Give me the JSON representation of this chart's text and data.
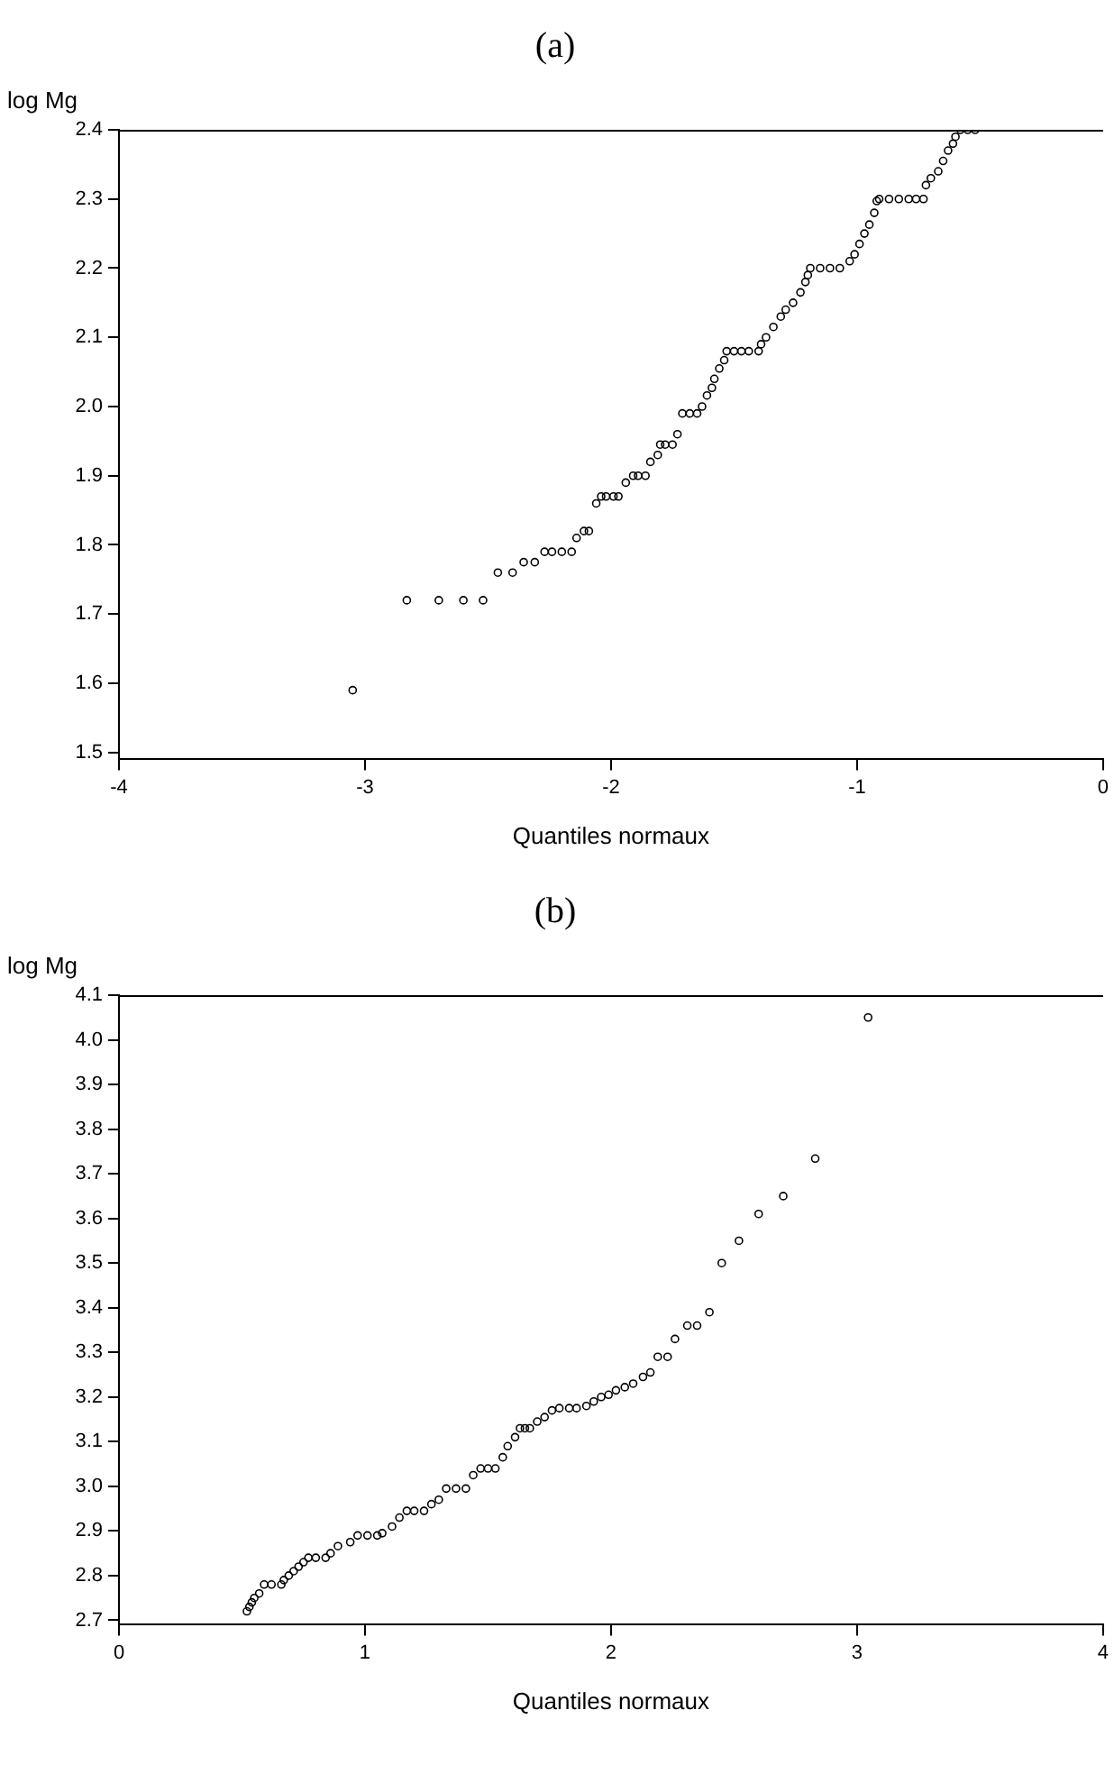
{
  "chart_data": [
    {
      "type": "scatter",
      "title": "(a)",
      "xlabel": "Quantiles normaux",
      "ylabel": "log Mg",
      "marker": "circle",
      "xlim": [
        -4,
        0
      ],
      "ylim": [
        1.49,
        2.4
      ],
      "xticks": [
        -4,
        -3,
        -2,
        -1,
        0
      ],
      "yticks": [
        1.5,
        1.6,
        1.7,
        1.8,
        1.9,
        {
          "value": 2,
          "label": "2.0"
        },
        2.1,
        2.2,
        2.3,
        2.4
      ],
      "series": [
        {
          "color": "#000000",
          "x": [
            -3.05,
            -2.83,
            -2.7,
            -2.6,
            -2.52,
            -2.46,
            -2.4,
            -2.355,
            -2.31,
            -2.27,
            -2.24,
            -2.2,
            -2.16,
            -2.14,
            -2.11,
            -2.09,
            -2.06,
            -2.04,
            -2.02,
            -1.99,
            -1.97,
            -1.94,
            -1.91,
            -1.89,
            -1.86,
            -1.84,
            -1.81,
            -1.8,
            -1.78,
            -1.75,
            -1.73,
            -1.71,
            -1.68,
            -1.65,
            -1.63,
            -1.61,
            -1.59,
            -1.58,
            -1.56,
            -1.54,
            -1.53,
            -1.5,
            -1.47,
            -1.44,
            -1.4,
            -1.39,
            -1.37,
            -1.34,
            -1.31,
            -1.29,
            -1.26,
            -1.23,
            -1.21,
            -1.2,
            -1.19,
            -1.15,
            -1.11,
            -1.07,
            -1.03,
            -1.01,
            -0.99,
            -0.97,
            -0.95,
            -0.93,
            -0.92,
            -0.91,
            -0.87,
            -0.83,
            -0.79,
            -0.76,
            -0.73,
            -0.72,
            -0.7,
            -0.67,
            -0.65,
            -0.63,
            -0.61,
            -0.6,
            -0.58,
            -0.55,
            -0.52
          ],
          "values": [
            1.59,
            1.72,
            1.72,
            1.72,
            1.72,
            1.76,
            1.76,
            1.775,
            1.775,
            1.79,
            1.79,
            1.79,
            1.79,
            1.81,
            1.82,
            1.82,
            1.86,
            1.87,
            1.87,
            1.87,
            1.87,
            1.89,
            1.9,
            1.9,
            1.9,
            1.92,
            1.93,
            1.945,
            1.945,
            1.945,
            1.96,
            1.99,
            1.99,
            1.99,
            2.0,
            2.016,
            2.027,
            2.04,
            2.055,
            2.067,
            2.08,
            2.08,
            2.08,
            2.08,
            2.08,
            2.09,
            2.1,
            2.115,
            2.13,
            2.14,
            2.15,
            2.165,
            2.18,
            2.19,
            2.2,
            2.2,
            2.2,
            2.2,
            2.21,
            2.22,
            2.235,
            2.25,
            2.263,
            2.28,
            2.297,
            2.3,
            2.3,
            2.3,
            2.3,
            2.3,
            2.3,
            2.32,
            2.33,
            2.34,
            2.355,
            2.37,
            2.38,
            2.39,
            2.4,
            2.4,
            2.4
          ]
        }
      ]
    },
    {
      "type": "scatter",
      "title": "(b)",
      "xlabel": "Quantiles normaux",
      "ylabel": "log Mg",
      "marker": "circle",
      "xlim": [
        0,
        4
      ],
      "ylim": [
        2.69,
        4.1
      ],
      "xticks": [
        0,
        1,
        2,
        3,
        4
      ],
      "yticks": [
        2.7,
        2.8,
        2.9,
        {
          "value": 3,
          "label": "3.0"
        },
        3.1,
        3.2,
        3.3,
        3.4,
        3.5,
        3.6,
        3.7,
        3.8,
        3.9,
        {
          "value": 4,
          "label": "4.0"
        },
        4.1
      ],
      "series": [
        {
          "color": "#000000",
          "x": [
            0.52,
            0.53,
            0.54,
            0.55,
            0.57,
            0.59,
            0.62,
            0.66,
            0.67,
            0.69,
            0.71,
            0.73,
            0.75,
            0.77,
            0.8,
            0.84,
            0.86,
            0.89,
            0.94,
            0.97,
            1.01,
            1.05,
            1.07,
            1.11,
            1.14,
            1.17,
            1.2,
            1.24,
            1.27,
            1.3,
            1.33,
            1.37,
            1.41,
            1.44,
            1.47,
            1.5,
            1.53,
            1.56,
            1.58,
            1.61,
            1.63,
            1.65,
            1.67,
            1.7,
            1.73,
            1.76,
            1.79,
            1.83,
            1.86,
            1.9,
            1.93,
            1.96,
            1.99,
            2.02,
            2.056,
            2.09,
            2.13,
            2.16,
            2.19,
            2.23,
            2.26,
            2.31,
            2.35,
            2.4,
            2.45,
            2.52,
            2.6,
            2.7,
            2.83,
            3.045
          ],
          "values": [
            2.72,
            2.73,
            2.74,
            2.75,
            2.76,
            2.78,
            2.78,
            2.78,
            2.79,
            2.8,
            2.81,
            2.82,
            2.83,
            2.84,
            2.84,
            2.84,
            2.85,
            2.866,
            2.875,
            2.89,
            2.89,
            2.89,
            2.895,
            2.91,
            2.93,
            2.945,
            2.945,
            2.945,
            2.96,
            2.97,
            2.995,
            2.995,
            2.995,
            3.025,
            3.04,
            3.04,
            3.04,
            3.065,
            3.09,
            3.11,
            3.13,
            3.13,
            3.13,
            3.145,
            3.155,
            3.17,
            3.175,
            3.175,
            3.175,
            3.18,
            3.19,
            3.2,
            3.205,
            3.215,
            3.222,
            3.23,
            3.245,
            3.255,
            3.29,
            3.29,
            3.33,
            3.36,
            3.36,
            3.39,
            3.5,
            3.55,
            3.61,
            3.65,
            3.734,
            4.05
          ]
        }
      ]
    }
  ]
}
